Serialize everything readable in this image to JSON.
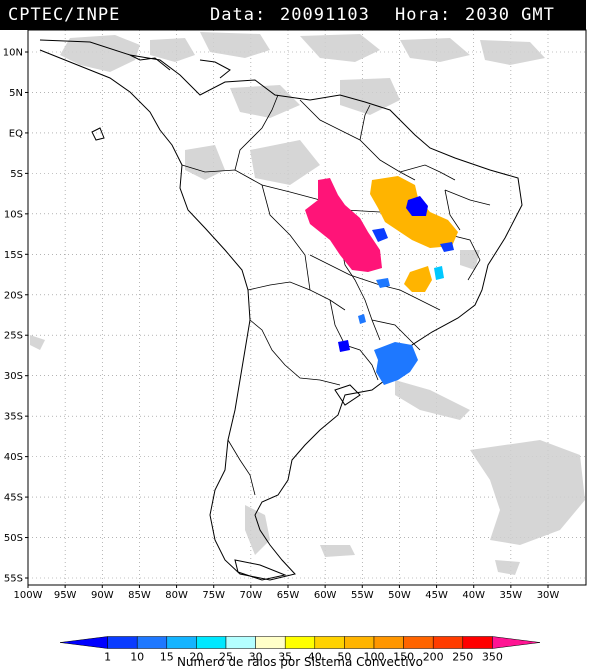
{
  "header": {
    "source": "CPTEC/INPE",
    "date_label": "Data:",
    "date": "20091103",
    "time_label": "Hora:",
    "time": "2030 GMT"
  },
  "map": {
    "lat_ticks": [
      "10N",
      "5N",
      "EQ",
      "5S",
      "10S",
      "15S",
      "20S",
      "25S",
      "30S",
      "35S",
      "40S",
      "45S",
      "50S",
      "55S"
    ],
    "lon_ticks": [
      "100W",
      "95W",
      "90W",
      "85W",
      "80W",
      "75W",
      "70W",
      "65W",
      "60W",
      "55W",
      "50W",
      "45W",
      "40W",
      "35W",
      "30W"
    ],
    "grid": "dotted"
  },
  "legend": {
    "title": "Numero de raios por Sistema Convectivo",
    "values": [
      "1",
      "10",
      "15",
      "20",
      "25",
      "30",
      "35",
      "40",
      "50",
      "100",
      "150",
      "200",
      "250",
      "350"
    ],
    "colors": [
      "#0000ff",
      "#0a3cff",
      "#1e78ff",
      "#14b4ff",
      "#00e8ff",
      "#b4ffff",
      "#ffffc8",
      "#ffff00",
      "#ffd200",
      "#ffb400",
      "#ff9600",
      "#ff6400",
      "#ff3c00",
      "#ff0000",
      "#ff1493"
    ]
  }
}
